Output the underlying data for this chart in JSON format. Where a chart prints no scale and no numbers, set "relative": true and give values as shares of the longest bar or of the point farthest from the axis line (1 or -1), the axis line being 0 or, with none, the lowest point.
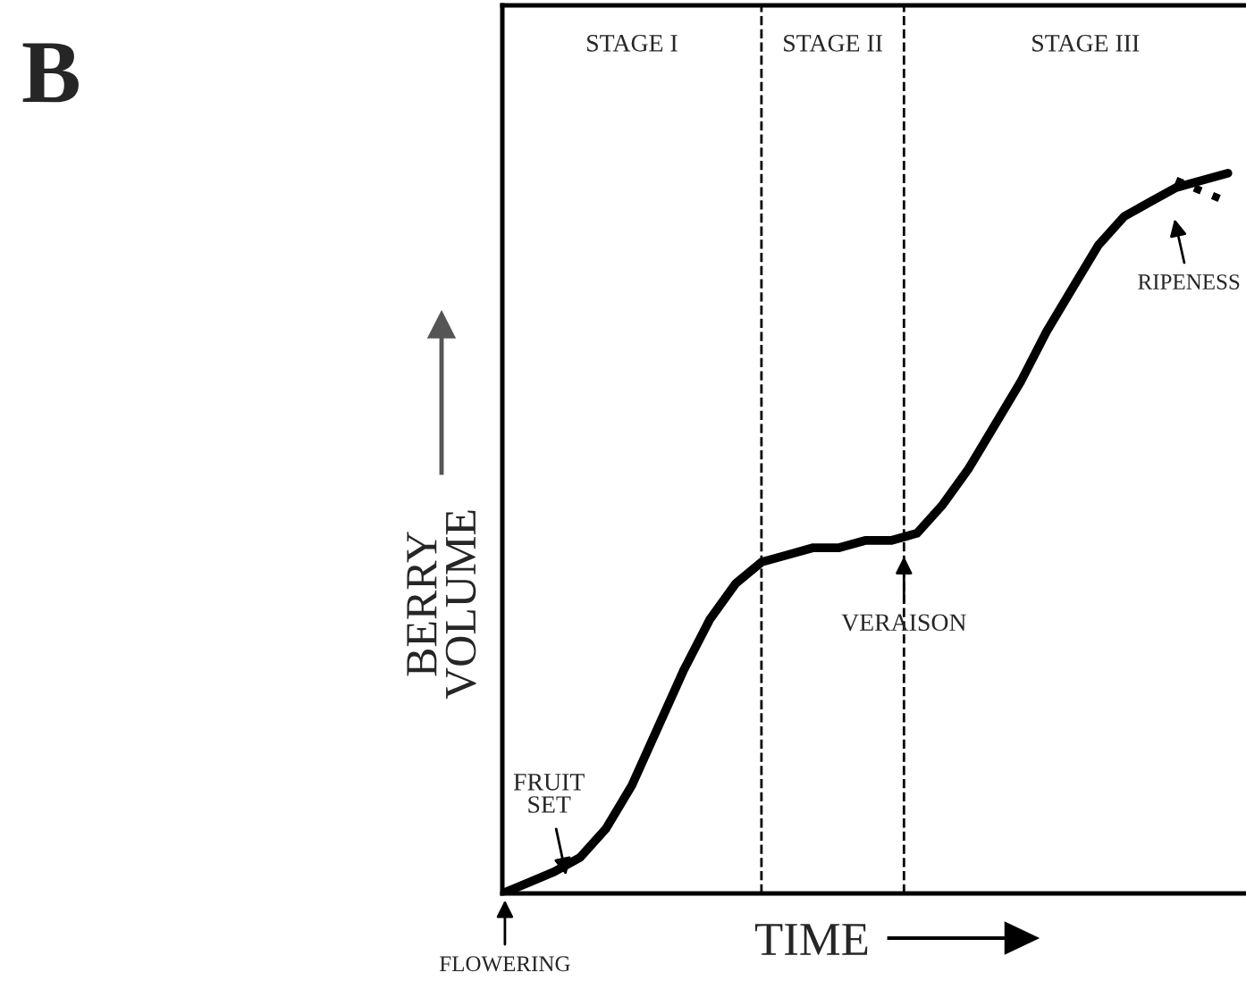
{
  "chart_data": {
    "type": "line",
    "relative": true,
    "xlabel": "TIME",
    "ylabel": "BERRY\nVOLUME",
    "categories": [
      null,
      null,
      null,
      null,
      null,
      null,
      null,
      null,
      null,
      null,
      null,
      null,
      null,
      null,
      null,
      null,
      null,
      null,
      null,
      null,
      null,
      null,
      null,
      null,
      null,
      null,
      null,
      null,
      null
    ],
    "series": [
      {
        "color": "#000000",
        "line_style": "solid",
        "values": [
          0,
          0.015,
          0.03,
          0.05,
          0.09,
          0.15,
          0.23,
          0.31,
          0.38,
          0.43,
          0.46,
          0.47,
          0.48,
          0.48,
          0.49,
          0.49,
          0.5,
          0.54,
          0.59,
          0.65,
          0.71,
          0.78,
          0.84,
          0.9,
          0.94,
          0.96,
          0.98,
          0.99,
          1.0
        ]
      },
      {
        "color": "#000000",
        "line_style": "dotted",
        "values": [
          null,
          null,
          null,
          null,
          null,
          null,
          null,
          null,
          null,
          null,
          null,
          null,
          null,
          null,
          null,
          null,
          null,
          null,
          null,
          null,
          null,
          null,
          null,
          null,
          null,
          null,
          0.99,
          0.975,
          0.96
        ]
      }
    ],
    "annotations": [
      "B",
      "STAGE I",
      "STAGE II",
      "STAGE III",
      "FLOWERING",
      "FRUIT\nSET",
      "VERAISON",
      "RIPENESS"
    ],
    "legend": false,
    "marker": "none"
  }
}
